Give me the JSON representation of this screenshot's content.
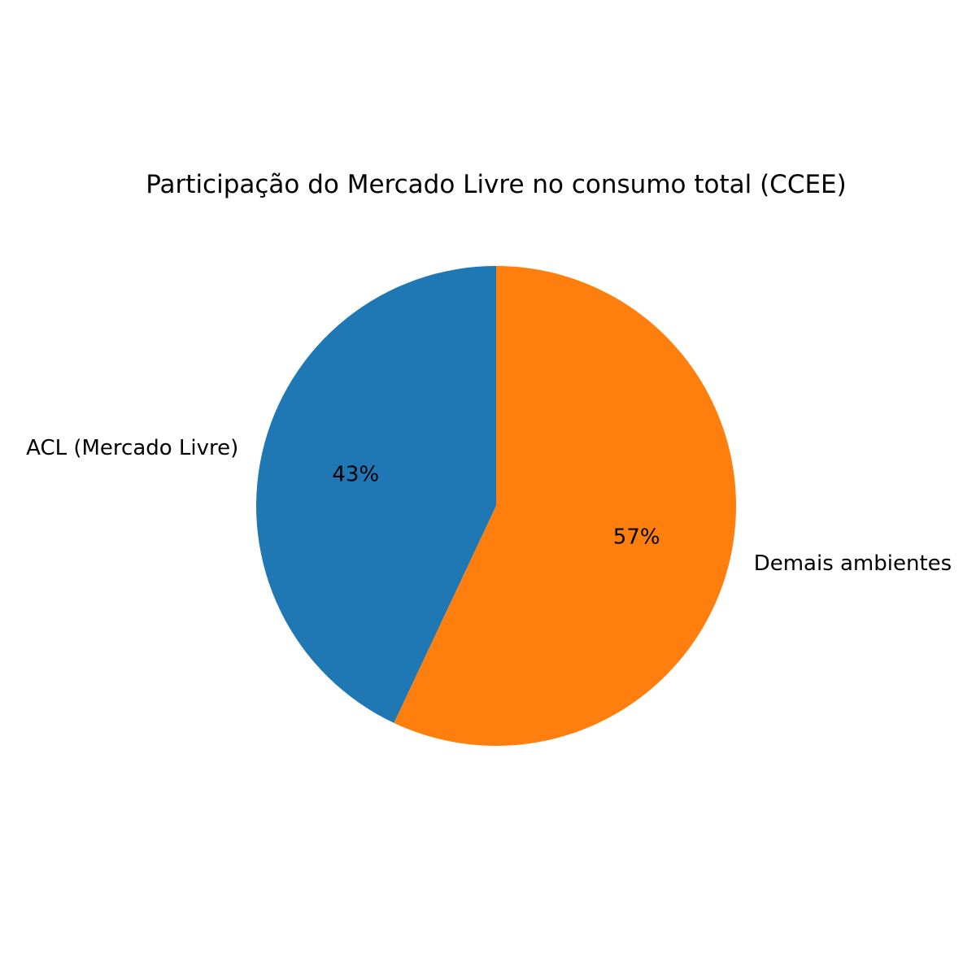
{
  "chart_data": {
    "type": "pie",
    "title": "Participação do Mercado Livre no consumo total (CCEE)",
    "slices": [
      {
        "label": "ACL (Mercado Livre)",
        "value": 43,
        "pct_label": "43%",
        "color": "#1f77b4"
      },
      {
        "label": "Demais ambientes",
        "value": 57,
        "pct_label": "57%",
        "color": "#ff7f0e"
      }
    ],
    "start_angle": "top",
    "direction": "counterclockwise",
    "legend": "none"
  }
}
